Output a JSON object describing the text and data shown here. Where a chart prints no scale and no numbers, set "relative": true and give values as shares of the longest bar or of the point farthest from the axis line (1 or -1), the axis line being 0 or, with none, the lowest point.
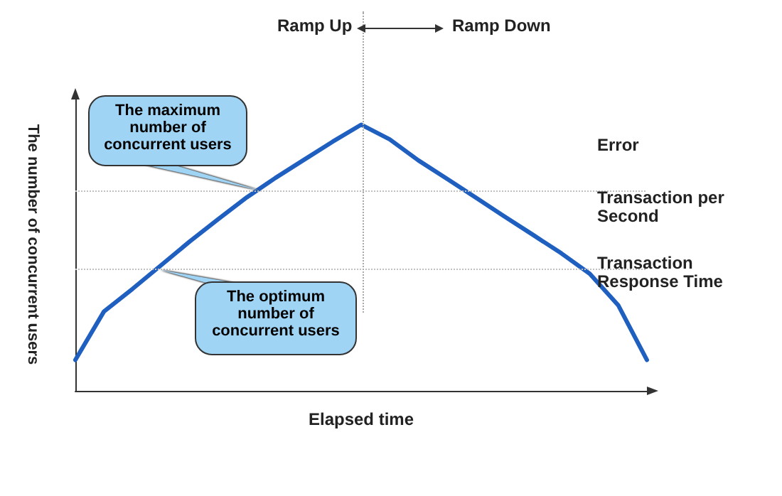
{
  "chart_data": {
    "type": "line",
    "relative": true,
    "xlabel": "Elapsed time",
    "ylabel": "The number of concurrent users",
    "categories": [
      null,
      null,
      null,
      null,
      null,
      null,
      null,
      null,
      null,
      null,
      null,
      null,
      null,
      null,
      null,
      null,
      null,
      null,
      null,
      null,
      null
    ],
    "series": [
      {
        "color": "#1f5fbf",
        "values": [
          0.116,
          0.298,
          0.383,
          0.472,
          0.561,
          0.645,
          0.727,
          0.8,
          0.868,
          0.936,
          1,
          0.945,
          0.866,
          0.797,
          0.727,
          0.656,
          0.587,
          0.517,
          0.44,
          0.321,
          0.116
        ]
      }
    ],
    "ref_lines": [
      {
        "axis": "y",
        "value": 0.754,
        "color": "#c0c0c0",
        "line_style": "dotted"
      },
      {
        "axis": "y",
        "value": 0.455,
        "color": "#c0c0c0",
        "line_style": "dotted"
      }
    ],
    "annotations": [
      "Ramp Up",
      "Ramp Down",
      "The maximum number of concurrent users",
      "The optimum number of concurrent users",
      "Error",
      "Transaction per Second",
      "Transaction Response Time"
    ],
    "grid": false,
    "marker": "none",
    "line_style": "solid"
  }
}
